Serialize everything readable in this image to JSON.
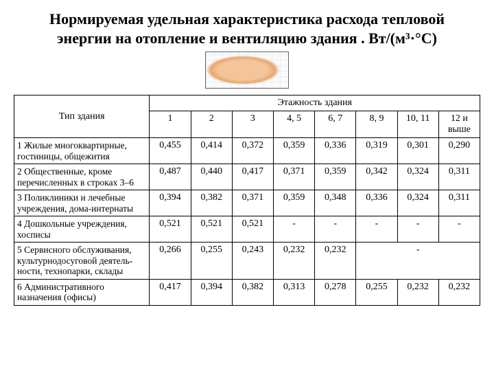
{
  "title": "Нормируемая удельная характеристика расхода тепловой энергии на отопление и вентиляцию здания . Вт/(м³·°С)",
  "table": {
    "typeHeader": "Тип здания",
    "superHeader": "Этажность здания",
    "columns": [
      "1",
      "2",
      "3",
      "4, 5",
      "6, 7",
      "8, 9",
      "10, 11",
      "12 и выше"
    ],
    "rows": [
      {
        "label": "1 Жилые многоквартирные, гостиницы, общежития",
        "cells": [
          {
            "v": "0,455"
          },
          {
            "v": "0,414"
          },
          {
            "v": "0,372"
          },
          {
            "v": "0,359"
          },
          {
            "v": "0,336"
          },
          {
            "v": "0,319"
          },
          {
            "v": "0,301"
          },
          {
            "v": "0,290"
          }
        ]
      },
      {
        "label": "2 Общественные, кроме перечисленных в строках 3–6",
        "cells": [
          {
            "v": "0,487"
          },
          {
            "v": "0,440"
          },
          {
            "v": "0,417"
          },
          {
            "v": "0,371"
          },
          {
            "v": "0,359"
          },
          {
            "v": "0,342"
          },
          {
            "v": "0,324"
          },
          {
            "v": "0,311"
          }
        ]
      },
      {
        "label": "3 Поликлиники и лечебные учреждения, дома-интернаты",
        "cells": [
          {
            "v": "0,394"
          },
          {
            "v": "0,382"
          },
          {
            "v": "0,371"
          },
          {
            "v": "0,359"
          },
          {
            "v": "0,348"
          },
          {
            "v": "0,336"
          },
          {
            "v": "0,324"
          },
          {
            "v": "0,311"
          }
        ]
      },
      {
        "label": "4 Дошкольные учреждения, хосписы",
        "cells": [
          {
            "v": "0,521"
          },
          {
            "v": "0,521"
          },
          {
            "v": "0,521"
          },
          {
            "v": "-"
          },
          {
            "v": "-"
          },
          {
            "v": "-"
          },
          {
            "v": "-"
          },
          {
            "v": "-"
          }
        ]
      },
      {
        "label": "5 Сервисного обслуживания, культурнодосуговой деятель-ности, технопарки, склады",
        "cells": [
          {
            "v": "0,266"
          },
          {
            "v": "0,255"
          },
          {
            "v": "0,243"
          },
          {
            "v": "0,232"
          },
          {
            "v": "0,232"
          },
          {
            "v": "-",
            "span": 3
          }
        ]
      },
      {
        "label": "6 Административного назначения (офисы)",
        "cells": [
          {
            "v": "0,417"
          },
          {
            "v": "0,394"
          },
          {
            "v": "0,382"
          },
          {
            "v": "0,313"
          },
          {
            "v": "0,278"
          },
          {
            "v": "0,255"
          },
          {
            "v": "0,232"
          },
          {
            "v": "0,232"
          }
        ]
      }
    ]
  }
}
